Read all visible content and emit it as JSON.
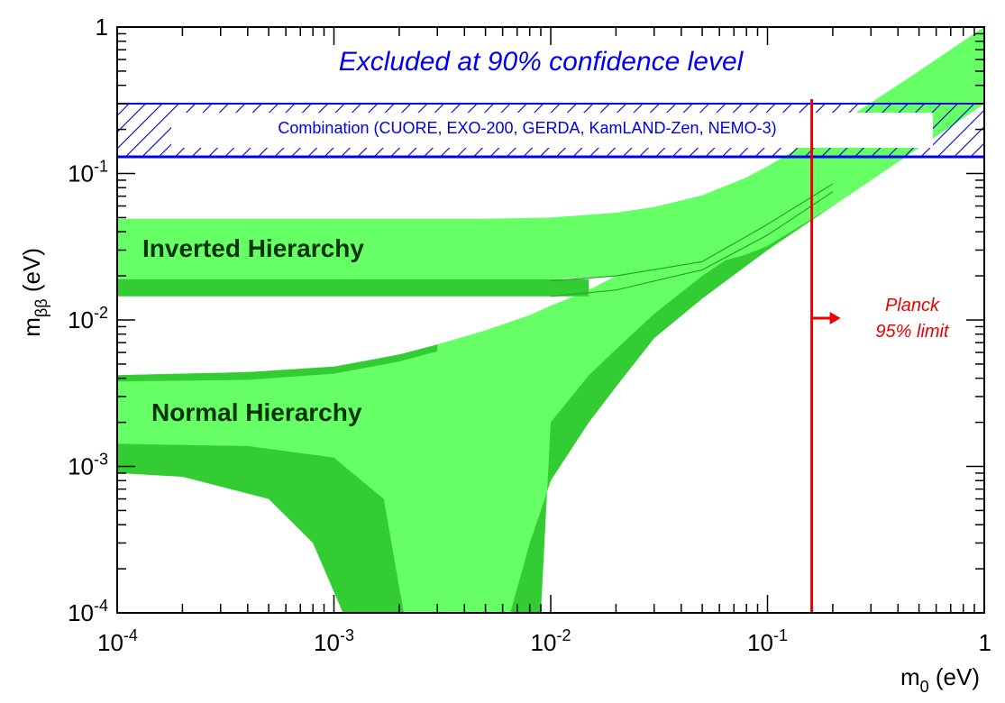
{
  "chart_data": {
    "type": "area",
    "title": "",
    "xlabel": {
      "main": "m",
      "sub": "0",
      "unit": " (eV)"
    },
    "ylabel": {
      "main": "m",
      "sub": "ββ",
      "unit": " (eV)"
    },
    "xscale": "log",
    "yscale": "log",
    "xlim": [
      0.0001,
      1
    ],
    "ylim": [
      0.0001,
      1
    ],
    "grid": false,
    "x_ticks": [
      {
        "value": 0.0001,
        "base": "10",
        "exp": "-4"
      },
      {
        "value": 0.001,
        "base": "10",
        "exp": "-3"
      },
      {
        "value": 0.01,
        "base": "10",
        "exp": "-2"
      },
      {
        "value": 0.1,
        "base": "10",
        "exp": "-1"
      },
      {
        "value": 1,
        "base": "1",
        "exp": ""
      }
    ],
    "y_ticks": [
      {
        "value": 0.0001,
        "base": "10",
        "exp": "-4"
      },
      {
        "value": 0.001,
        "base": "10",
        "exp": "-3"
      },
      {
        "value": 0.01,
        "base": "10",
        "exp": "-2"
      },
      {
        "value": 0.1,
        "base": "10",
        "exp": "-1"
      },
      {
        "value": 1,
        "base": "1",
        "exp": ""
      }
    ],
    "series": [
      {
        "name": "Inverted Hierarchy",
        "color": "#66ff66",
        "x": [
          0.0001,
          0.002,
          0.005,
          0.01,
          0.02,
          0.03,
          0.05,
          0.08,
          0.1,
          0.2,
          0.5,
          1
        ],
        "upper": [
          0.049,
          0.049,
          0.049,
          0.05,
          0.054,
          0.059,
          0.071,
          0.094,
          0.112,
          0.205,
          0.5,
          1.0
        ],
        "lower": [
          0.019,
          0.019,
          0.019,
          0.019,
          0.02,
          0.021,
          0.023,
          0.028,
          0.032,
          0.06,
          0.15,
          0.3
        ]
      },
      {
        "name": "Inverted Hierarchy (dark band)",
        "color": "#33cc33",
        "x": [
          0.0001,
          0.005,
          0.01,
          0.015
        ],
        "upper": [
          0.019,
          0.019,
          0.019,
          0.019
        ],
        "lower": [
          0.0145,
          0.0145,
          0.0145,
          0.0145
        ]
      },
      {
        "name": "Normal Hierarchy",
        "color": "#66ff66",
        "x": [
          0.0001,
          0.0004,
          0.001,
          0.002,
          0.003,
          0.005,
          0.008,
          0.01,
          0.015,
          0.02,
          0.03,
          0.05,
          0.1,
          0.2,
          0.5,
          1
        ],
        "upper": [
          0.0042,
          0.0044,
          0.0048,
          0.0058,
          0.0068,
          0.0085,
          0.0108,
          0.0125,
          0.016,
          0.02,
          0.03,
          0.05,
          0.1,
          0.2,
          0.5,
          1.0
        ],
        "lower_left_branch": [
          0.00143,
          0.00138,
          0.00115,
          0.0006,
          0.0001
        ],
        "lower_right_branch": {
          "x": [
            0.0065,
            0.008,
            0.01,
            0.015,
            0.02,
            0.03,
            0.05,
            0.1,
            0.2,
            0.5,
            1
          ],
          "y": [
            0.0001,
            0.0003,
            0.0008,
            0.002,
            0.0035,
            0.0075,
            0.014,
            0.03,
            0.06,
            0.15,
            0.3
          ]
        }
      }
    ],
    "annotations": {
      "exclusion_band": {
        "text": "Excluded at 90% confidence level",
        "ymin": 0.13,
        "ymax": 0.3,
        "color": "#0000ee"
      },
      "combination_label": "Combination (CUORE, EXO-200, GERDA, KamLAND-Zen, NEMO-3)",
      "planck": {
        "x": 0.16,
        "text_line1": "Planck",
        "text_line2": "95% limit",
        "color": "#ee0000"
      },
      "inverted_label": "Inverted Hierarchy",
      "normal_label": "Normal Hierarchy"
    }
  }
}
